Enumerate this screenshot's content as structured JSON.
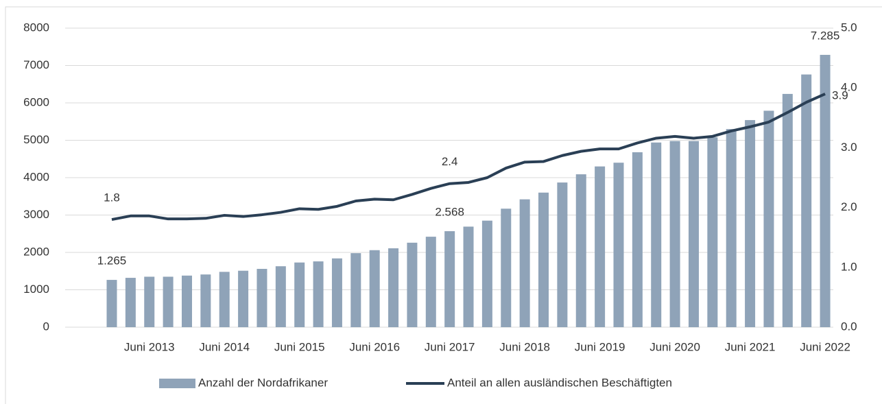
{
  "chart_data": {
    "type": "bar-line",
    "categories": [
      null,
      null,
      "Juni 2013",
      null,
      null,
      null,
      "Juni 2014",
      null,
      null,
      null,
      "Juni 2015",
      null,
      null,
      null,
      "Juni 2016",
      null,
      null,
      null,
      "Juni 2017",
      null,
      null,
      null,
      "Juni 2018",
      null,
      null,
      null,
      "Juni 2019",
      null,
      null,
      null,
      "Juni 2020",
      null,
      null,
      null,
      "Juni 2021",
      null,
      null,
      null,
      "Juni 2022"
    ],
    "series": [
      {
        "name": "Anzahl der Nordafrikaner",
        "type": "bar",
        "color": "#8fa3b8",
        "values": [
          1265,
          1320,
          1350,
          1350,
          1380,
          1410,
          1480,
          1510,
          1560,
          1630,
          1730,
          1760,
          1840,
          1980,
          2060,
          2110,
          2260,
          2420,
          2568,
          2690,
          2850,
          3170,
          3420,
          3600,
          3870,
          4090,
          4300,
          4400,
          4680,
          4940,
          4980,
          4980,
          5080,
          5300,
          5540,
          5790,
          6240,
          6760,
          7285
        ],
        "value_labels": [
          "1.265",
          null,
          null,
          null,
          null,
          null,
          null,
          null,
          null,
          null,
          null,
          null,
          null,
          null,
          null,
          null,
          null,
          null,
          "2.568",
          null,
          null,
          null,
          null,
          null,
          null,
          null,
          null,
          null,
          null,
          null,
          null,
          null,
          null,
          null,
          null,
          null,
          null,
          null,
          "7.285"
        ]
      },
      {
        "name": "Anteil an allen ausländischen Beschäftigten",
        "type": "line",
        "axis": "y2",
        "color": "#2a3f55",
        "values": [
          1.8,
          1.86,
          1.86,
          1.81,
          1.81,
          1.82,
          1.87,
          1.85,
          1.88,
          1.92,
          1.98,
          1.97,
          2.02,
          2.11,
          2.14,
          2.13,
          2.22,
          2.32,
          2.4,
          2.42,
          2.5,
          2.66,
          2.76,
          2.77,
          2.87,
          2.94,
          2.98,
          2.98,
          3.08,
          3.16,
          3.19,
          3.16,
          3.19,
          3.28,
          3.35,
          3.43,
          3.59,
          3.76,
          3.9
        ],
        "value_labels": [
          "1.8",
          null,
          null,
          null,
          null,
          null,
          null,
          null,
          null,
          null,
          null,
          null,
          null,
          null,
          null,
          null,
          null,
          null,
          "2.4",
          null,
          null,
          null,
          null,
          null,
          null,
          null,
          null,
          null,
          null,
          null,
          null,
          null,
          null,
          null,
          null,
          null,
          null,
          null,
          "3.9"
        ]
      }
    ],
    "ylim": [
      0,
      8000
    ],
    "yticks": [
      0,
      1000,
      2000,
      3000,
      4000,
      5000,
      6000,
      7000,
      8000
    ],
    "y2lim": [
      0,
      5
    ],
    "y2ticks": [
      {
        "value": 0,
        "label": "0.0"
      },
      {
        "value": 1,
        "label": "1.0"
      },
      {
        "value": 2,
        "label": "2.0"
      },
      {
        "value": 3,
        "label": "3.0"
      },
      {
        "value": 4,
        "label": "4.0"
      },
      {
        "value": 5,
        "label": "5.0"
      }
    ],
    "grid": true,
    "legend": "bottom"
  }
}
